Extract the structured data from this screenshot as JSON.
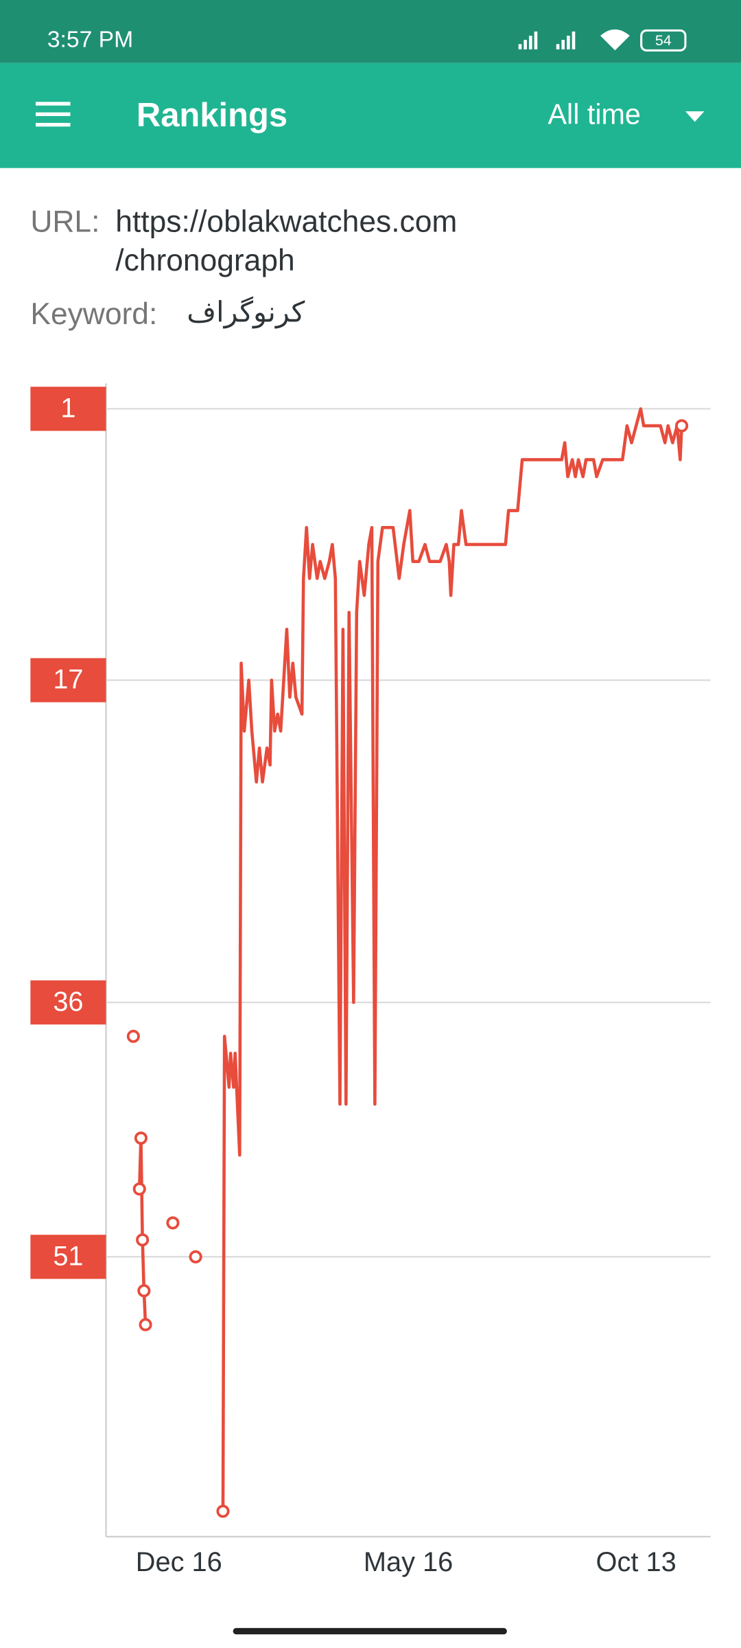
{
  "status_bar": {
    "time": "3:57 PM",
    "battery": "54"
  },
  "app_bar": {
    "title": "Rankings",
    "range": "All time"
  },
  "details": {
    "url_label": "URL:",
    "url": [
      "https://oblakwatches.com",
      "/chronograph"
    ],
    "keyword_label": "Keyword:",
    "keyword": "کرنوگراف"
  },
  "chart_data": {
    "type": "line",
    "x": [
      -30,
      -28,
      -26,
      -25,
      -24,
      -23,
      -22,
      -12,
      -4,
      4,
      11,
      20,
      29,
      30,
      33,
      34,
      36,
      37,
      39,
      40,
      41,
      43,
      46,
      48,
      51,
      53,
      55,
      58,
      60,
      61,
      63,
      65,
      67,
      69,
      71,
      73,
      75,
      77,
      81,
      82,
      84,
      86,
      88,
      91,
      93,
      96,
      99,
      101,
      103,
      106,
      108,
      110,
      112,
      115,
      117,
      119,
      122,
      125,
      127,
      129,
      131,
      134,
      141,
      145,
      148,
      152,
      154,
      158,
      162,
      165,
      172,
      176,
      178,
      179,
      181,
      184,
      186,
      189,
      193,
      215,
      217,
      223,
      226,
      252,
      254,
      256,
      259,
      261,
      263,
      266,
      268,
      273,
      275,
      279,
      292,
      295,
      298,
      304,
      306,
      317,
      320,
      322,
      325,
      328,
      330,
      331
    ],
    "series": [
      {
        "color": "#e74c3c",
        "values": [
          38,
          null,
          47,
          44,
          50,
          53,
          55,
          null,
          49,
          null,
          51,
          null,
          66,
          38,
          41,
          39,
          41,
          39,
          43,
          45,
          16,
          20,
          17,
          20,
          23,
          21,
          23,
          21,
          22,
          17,
          20,
          19,
          20,
          17,
          14,
          18,
          16,
          18,
          19,
          11,
          8,
          11,
          9,
          11,
          10,
          11,
          10,
          9,
          11,
          42,
          14,
          42,
          13,
          36,
          13,
          10,
          12,
          9,
          8,
          42,
          10,
          8,
          8,
          11,
          9,
          7,
          10,
          10,
          9,
          10,
          10,
          9,
          10,
          12,
          9,
          9,
          7,
          9,
          9,
          9,
          7,
          7,
          4,
          4,
          3,
          5,
          4,
          5,
          4,
          5,
          4,
          4,
          5,
          4,
          4,
          2,
          3,
          1,
          2,
          2,
          3,
          2,
          3,
          2,
          4,
          2
        ]
      }
    ],
    "ylim": [
      67.5,
      -0.5
    ],
    "yticks": [
      1,
      17,
      36,
      51
    ],
    "xlim": [
      -48,
      350
    ],
    "xticks": [
      {
        "value": 0,
        "label": "Dec 16"
      },
      {
        "value": 151,
        "label": "May 16"
      },
      {
        "value": 301,
        "label": "Oct 13"
      }
    ],
    "grid": true
  }
}
